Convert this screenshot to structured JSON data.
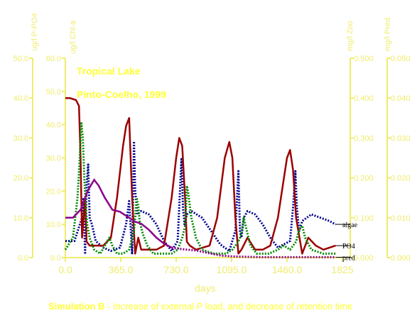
{
  "chart_data": {
    "type": "line",
    "xlabel": "days",
    "x_range": [
      0,
      1825
    ],
    "x_ticks": [
      "0.0",
      "365.0",
      "730.0",
      "1095.0",
      "1460.0",
      "1825"
    ],
    "axes": {
      "p_po4": {
        "label": "ug/l P-PO4",
        "ylim": [
          0,
          50
        ],
        "ticks": [
          "0.0",
          "10.0",
          "20.0",
          "30.0",
          "40.0",
          "50.0"
        ]
      },
      "chl_a": {
        "label": "ug/l Chl-a",
        "ylim": [
          0,
          60
        ],
        "ticks": [
          "0.0",
          "10.0",
          "20.0",
          "30.0",
          "40.0",
          "50.0",
          "60.0"
        ]
      },
      "zoo": {
        "label": "mg/l Zoo",
        "ylim": [
          0,
          0.5
        ],
        "ticks": [
          "0.000",
          "0.100",
          "0.200",
          "0.300",
          "0.400",
          "0.500"
        ]
      },
      "pred": {
        "label": "mg/l Pred",
        "ylim": [
          0,
          0.05
        ],
        "ticks": [
          "0.000",
          "0.010",
          "0.020",
          "0.030",
          "0.040",
          "0.050"
        ]
      }
    },
    "annotations": [
      "Tropical Lake",
      "Pinto-Coelho, 1999"
    ],
    "series": [
      {
        "name": "algae",
        "axis": "chl_a",
        "color": "#00008b",
        "style": "dotted",
        "x": [
          0,
          60,
          110,
          120,
          130,
          140,
          150,
          160,
          175,
          200,
          250,
          300,
          360,
          400,
          420,
          440,
          452,
          460,
          475,
          500,
          550,
          600,
          650,
          700,
          740,
          765,
          775,
          785,
          800,
          830,
          900,
          960,
          1020,
          1080,
          1120,
          1140,
          1150,
          1160,
          1175,
          1200,
          1250,
          1300,
          1350,
          1400,
          1480,
          1500,
          1515,
          1525,
          1540,
          1560,
          1620,
          1680,
          1740,
          1780
        ],
        "y": [
          5,
          5,
          12,
          18,
          1,
          22,
          28,
          12,
          10,
          5,
          3,
          2,
          3,
          10,
          17,
          1,
          35,
          20,
          13,
          14,
          13,
          10,
          5,
          2,
          5,
          30,
          15,
          10,
          13,
          14,
          12,
          8,
          4,
          2,
          8,
          26,
          8,
          6,
          12,
          14,
          13,
          10,
          6,
          3,
          5,
          15,
          26,
          15,
          8,
          11,
          13,
          12,
          11,
          10
        ]
      },
      {
        "name": "PO4",
        "axis": "p_po4",
        "color": "#9b0000",
        "style": "solid",
        "x": [
          0,
          30,
          70,
          90,
          100,
          110,
          120,
          130,
          140,
          160,
          200,
          250,
          300,
          340,
          380,
          400,
          420,
          440,
          460,
          480,
          500,
          550,
          600,
          650,
          700,
          730,
          750,
          770,
          790,
          800,
          820,
          860,
          950,
          1000,
          1050,
          1080,
          1100,
          1120,
          1140,
          1160,
          1200,
          1250,
          1300,
          1350,
          1400,
          1440,
          1460,
          1480,
          1500,
          1520,
          1560,
          1600,
          1650,
          1700,
          1780
        ],
        "y": [
          40,
          40,
          39.5,
          38,
          25,
          5,
          10,
          15,
          4,
          3,
          3,
          3,
          5,
          15,
          28,
          33,
          35,
          15,
          1,
          5,
          2,
          2,
          2,
          3,
          15,
          25,
          30,
          28,
          14,
          4,
          3,
          2,
          3,
          10,
          25,
          29,
          25,
          10,
          1,
          2,
          5,
          2,
          2,
          3,
          10,
          20,
          25,
          27,
          22,
          10,
          1,
          5,
          3,
          2,
          3
        ]
      },
      {
        "name": "zoo",
        "axis": "zoo",
        "color": "#008b00",
        "style": "dotted",
        "x": [
          0,
          50,
          80,
          95,
          105,
          115,
          125,
          135,
          145,
          160,
          190,
          230,
          260,
          290,
          310,
          340,
          380,
          420,
          450,
          460,
          470,
          480,
          490,
          510,
          540,
          580,
          640,
          700,
          740,
          770,
          790,
          800,
          810,
          830,
          860,
          900,
          980,
          1060,
          1100,
          1140,
          1160,
          1175,
          1200,
          1220,
          1260,
          1340,
          1400,
          1440,
          1480,
          1520,
          1540,
          1560,
          1580,
          1620,
          1700,
          1780
        ],
        "y": [
          0.02,
          0.05,
          0.15,
          0.25,
          0.34,
          0.3,
          0.2,
          0.12,
          0.08,
          0.05,
          0.02,
          0.01,
          0.03,
          0.05,
          0.03,
          0.01,
          0.01,
          0.02,
          0.06,
          0.1,
          0.15,
          0.13,
          0.09,
          0.06,
          0.03,
          0.01,
          0.01,
          0.01,
          0.02,
          0.05,
          0.08,
          0.18,
          0.16,
          0.1,
          0.05,
          0.02,
          0.01,
          0.01,
          0.02,
          0.04,
          0.06,
          0.1,
          0.06,
          0.03,
          0.01,
          0.01,
          0.02,
          0.03,
          0.02,
          0.04,
          0.07,
          0.08,
          0.05,
          0.02,
          0.01,
          0.01
        ]
      },
      {
        "name": "pred",
        "axis": "pred",
        "color": "#8b008b",
        "style": "mixed",
        "x": [
          0,
          50,
          100,
          150,
          190,
          220,
          260,
          310,
          360,
          420,
          460,
          500,
          550,
          600,
          650,
          700,
          750,
          800,
          860,
          900,
          960,
          1030,
          1100,
          1200,
          1300,
          1400,
          1500,
          1600,
          1700,
          1780
        ],
        "y": [
          0.01,
          0.01,
          0.012,
          0.017,
          0.0195,
          0.018,
          0.015,
          0.012,
          0.0115,
          0.01,
          0.009,
          0.0085,
          0.007,
          0.005,
          0.0035,
          0.0025,
          0.0022,
          0.002,
          0.0018,
          0.0015,
          0.001,
          0.0005,
          0.0003,
          0.0002,
          0.0001,
          0.0001,
          0.0001,
          0.0001,
          0.0001,
          0.0001
        ]
      }
    ],
    "legend_labels": [
      {
        "series": "algae",
        "text": "algae"
      },
      {
        "series": "PO4",
        "text": "PO4"
      },
      {
        "series": "pred",
        "text": "pred"
      }
    ]
  },
  "caption": {
    "bold": "Simulation B",
    "text": " - Increase of external P load, and decrease of retention time"
  },
  "colors": {
    "axis": "#f0ec6c",
    "text": "#ffff33"
  }
}
